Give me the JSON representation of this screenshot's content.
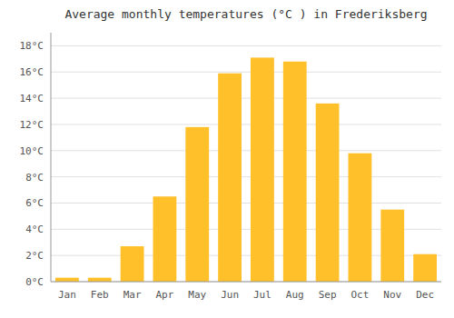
{
  "chart_data": {
    "type": "bar",
    "title": "Average monthly temperatures (°C ) in Frederiksberg",
    "categories": [
      "Jan",
      "Feb",
      "Mar",
      "Apr",
      "May",
      "Jun",
      "Jul",
      "Aug",
      "Sep",
      "Oct",
      "Nov",
      "Dec"
    ],
    "values": [
      0.3,
      0.3,
      2.7,
      6.5,
      11.8,
      15.9,
      17.1,
      16.8,
      13.6,
      9.8,
      5.5,
      2.1
    ],
    "color": "#FFC02A",
    "ylim": [
      0,
      19
    ],
    "yticks": [
      {
        "value": 0,
        "label": "0°C"
      },
      {
        "value": 2,
        "label": "2°C"
      },
      {
        "value": 4,
        "label": "4°C"
      },
      {
        "value": 6,
        "label": "6°C"
      },
      {
        "value": 8,
        "label": "8°C"
      },
      {
        "value": 10,
        "label": "10°C"
      },
      {
        "value": 12,
        "label": "12°C"
      },
      {
        "value": 14,
        "label": "14°C"
      },
      {
        "value": 16,
        "label": "16°C"
      },
      {
        "value": 18,
        "label": "18°C"
      }
    ],
    "grid": true
  }
}
